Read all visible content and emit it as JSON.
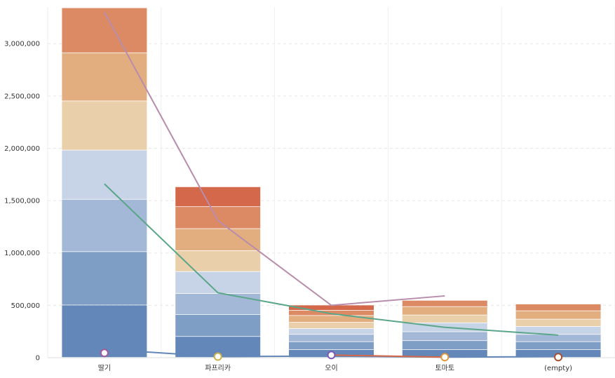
{
  "chart_data": {
    "type": "bar",
    "stacked": true,
    "categories": [
      "딸기",
      "파프리카",
      "오이",
      "토마토",
      "(empty)"
    ],
    "ylim": [
      0,
      3350000
    ],
    "yticks": [
      0,
      500000,
      1000000,
      1500000,
      2000000,
      2500000,
      3000000
    ],
    "ytick_labels": [
      "0",
      "500,000",
      "1,000,000",
      "1,500,000",
      "2,000,000",
      "2,500,000",
      "3,000,000"
    ],
    "grid": true,
    "bar_segments": [
      [
        500000,
        510000,
        500000,
        470000,
        470000,
        460000,
        430000
      ],
      [
        200000,
        210000,
        200000,
        210000,
        200000,
        210000,
        210000,
        190000
      ],
      [
        75000,
        75000,
        70000,
        55000,
        60000,
        65000,
        50000,
        50000
      ],
      [
        75000,
        85000,
        85000,
        85000,
        75000,
        80000,
        60000
      ],
      [
        75000,
        75000,
        70000,
        75000,
        70000,
        80000,
        65000
      ]
    ],
    "segment_colors": [
      "#6287b8",
      "#7f9ec6",
      "#a3b7d6",
      "#c7d3e6",
      "#e9cfaa",
      "#e2ae7f",
      "#dc8a64",
      "#d4684a"
    ],
    "lines": [
      {
        "color": "#b88cab",
        "values": [
          3300000,
          1310000,
          500000,
          590000,
          null
        ]
      },
      {
        "color": "#5aa688",
        "values": [
          1660000,
          620000,
          420000,
          290000,
          215000
        ]
      },
      {
        "color": "#6287b8",
        "values": [
          80000,
          10000,
          15000,
          5000,
          10000
        ]
      },
      {
        "color": "#d4684a",
        "values": [
          null,
          null,
          25000,
          5000,
          null
        ]
      }
    ],
    "markers": [
      {
        "category": "딸기",
        "value": 45000,
        "stroke": "#a05c9e"
      },
      {
        "category": "파프리카",
        "value": 10000,
        "stroke": "#c9b24a"
      },
      {
        "category": "오이",
        "value": 25000,
        "stroke": "#7b58b6"
      },
      {
        "category": "토마토",
        "value": 5000,
        "stroke": "#e2953c"
      },
      {
        "category": "(empty)",
        "value": 5000,
        "stroke": "#a8512f"
      }
    ]
  }
}
